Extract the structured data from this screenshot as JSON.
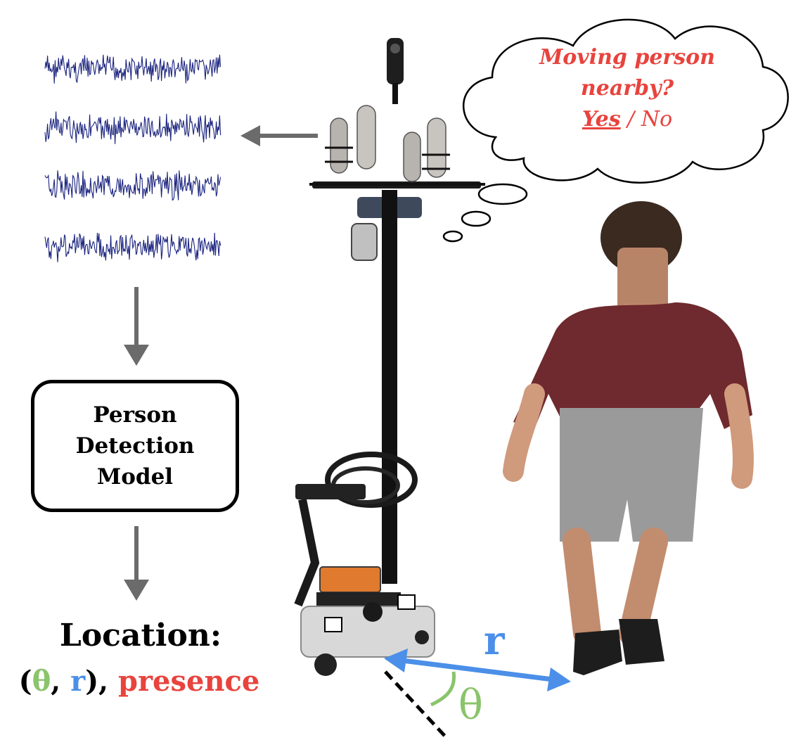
{
  "thought": {
    "line1": "Moving person",
    "line2": "nearby?",
    "yes": "Yes",
    "slash": " / ",
    "no": "No"
  },
  "model": {
    "line1": "Person",
    "line2": "Detection",
    "line3": "Model"
  },
  "location": {
    "title": "Location:",
    "open": "(",
    "theta": "θ",
    "comma1": ", ",
    "r": "r",
    "close": "), ",
    "presence": "presence"
  },
  "geometry_labels": {
    "r": "r",
    "theta": "θ"
  },
  "colors": {
    "red": "#e8433d",
    "blue": "#4b8fe8",
    "green": "#8ac46b",
    "arrow_gray": "#6b6b6b",
    "signal_blue": "#1a237e"
  },
  "signals": {
    "channel_count": 4
  }
}
